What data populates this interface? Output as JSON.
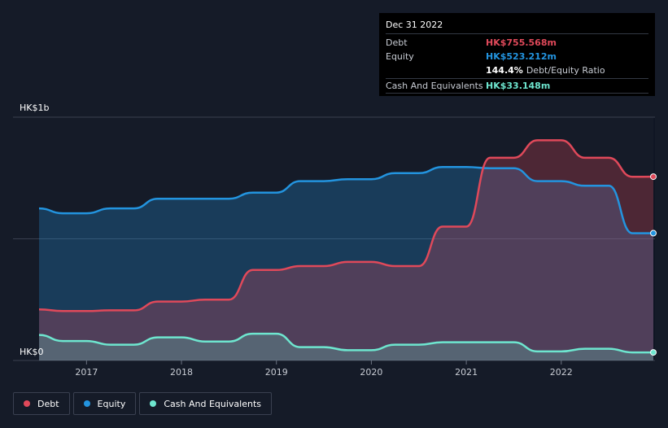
{
  "tooltip": {
    "date": "Dec 31 2022",
    "debt_label": "Debt",
    "debt_value": "HK$755.568m",
    "equity_label": "Equity",
    "equity_value": "HK$523.212m",
    "ratio_value": "144.4%",
    "ratio_label": "Debt/Equity Ratio",
    "cash_label": "Cash And Equivalents",
    "cash_value": "HK$33.148m"
  },
  "legend": {
    "debt": "Debt",
    "equity": "Equity",
    "cash": "Cash And Equivalents"
  },
  "colors": {
    "debt": "#e0495a",
    "equity": "#2394df",
    "cash": "#6ee6cf",
    "background": "#151b28"
  },
  "chart_data": {
    "type": "area",
    "title": "",
    "xlabel": "",
    "ylabel": "",
    "ylim": [
      0,
      1000
    ],
    "xlim": [
      2016.5,
      2022.97
    ],
    "y_ticks": [
      {
        "value": 0,
        "label": "HK$0"
      },
      {
        "value": 1000,
        "label": "HK$1b"
      }
    ],
    "x_ticks": [
      {
        "value": 2017,
        "label": "2017"
      },
      {
        "value": 2018,
        "label": "2018"
      },
      {
        "value": 2019,
        "label": "2019"
      },
      {
        "value": 2020,
        "label": "2020"
      },
      {
        "value": 2021,
        "label": "2021"
      },
      {
        "value": 2022,
        "label": "2022"
      }
    ],
    "series": [
      {
        "name": "Debt",
        "x": [
          2016.5,
          2016.75,
          2017.0,
          2017.25,
          2017.5,
          2017.75,
          2018.0,
          2018.25,
          2018.5,
          2018.75,
          2019.0,
          2019.25,
          2019.5,
          2019.75,
          2020.0,
          2020.25,
          2020.5,
          2020.75,
          2021.0,
          2021.25,
          2021.5,
          2021.75,
          2022.0,
          2022.25,
          2022.5,
          2022.75,
          2022.97
        ],
        "values": [
          210,
          203,
          203,
          206,
          206,
          242,
          242,
          250,
          250,
          372,
          372,
          388,
          388,
          405,
          405,
          388,
          388,
          550,
          550,
          833,
          833,
          905,
          905,
          833,
          833,
          755,
          755.568
        ]
      },
      {
        "name": "Equity",
        "x": [
          2016.5,
          2016.75,
          2017.0,
          2017.25,
          2017.5,
          2017.75,
          2018.0,
          2018.25,
          2018.5,
          2018.75,
          2019.0,
          2019.25,
          2019.5,
          2019.75,
          2020.0,
          2020.25,
          2020.5,
          2020.75,
          2021.0,
          2021.25,
          2021.5,
          2021.75,
          2022.0,
          2022.25,
          2022.5,
          2022.75,
          2022.97
        ],
        "values": [
          625,
          605,
          605,
          625,
          625,
          665,
          665,
          665,
          665,
          690,
          690,
          737,
          737,
          745,
          745,
          770,
          770,
          795,
          795,
          790,
          790,
          737,
          737,
          718,
          718,
          523,
          523.212
        ]
      },
      {
        "name": "Cash And Equivalents",
        "x": [
          2016.5,
          2016.75,
          2017.0,
          2017.25,
          2017.5,
          2017.75,
          2018.0,
          2018.25,
          2018.5,
          2018.75,
          2019.0,
          2019.25,
          2019.5,
          2019.75,
          2020.0,
          2020.25,
          2020.5,
          2020.75,
          2021.0,
          2021.25,
          2021.5,
          2021.75,
          2022.0,
          2022.25,
          2022.5,
          2022.75,
          2022.97
        ],
        "values": [
          105,
          80,
          80,
          65,
          65,
          95,
          95,
          78,
          78,
          110,
          110,
          55,
          55,
          42,
          42,
          65,
          65,
          75,
          75,
          75,
          75,
          37,
          37,
          48,
          48,
          33,
          33.148
        ]
      }
    ]
  }
}
